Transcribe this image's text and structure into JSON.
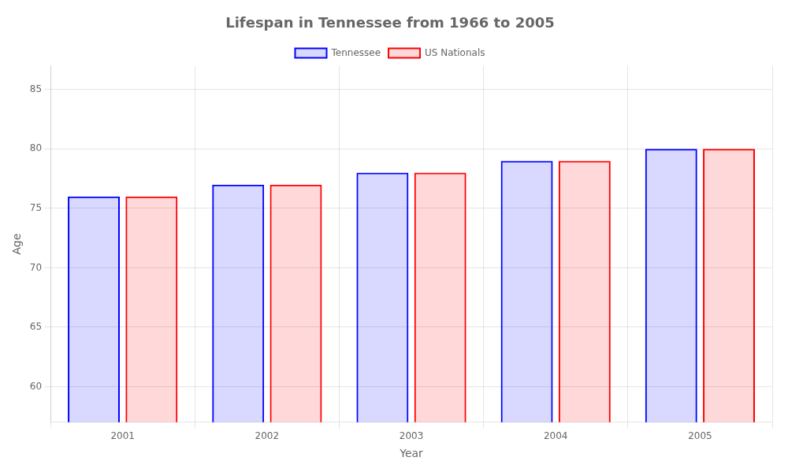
{
  "chart_data": {
    "type": "bar",
    "title": "Lifespan in Tennessee from 1966 to 2005",
    "x_label": "Year",
    "y_label": "Age",
    "categories": [
      "2001",
      "2002",
      "2003",
      "2004",
      "2005"
    ],
    "series": [
      {
        "name": "Tennessee",
        "color": "#0000ff",
        "values": [
          76,
          77,
          78,
          79,
          80
        ]
      },
      {
        "name": "US Nationals",
        "color": "#ff0000",
        "values": [
          76,
          77,
          78,
          79,
          80
        ]
      }
    ],
    "ylim": [
      57,
      87
    ],
    "yticks": [
      60,
      65,
      70,
      75,
      80,
      85
    ],
    "grid": true,
    "legend": "top"
  }
}
